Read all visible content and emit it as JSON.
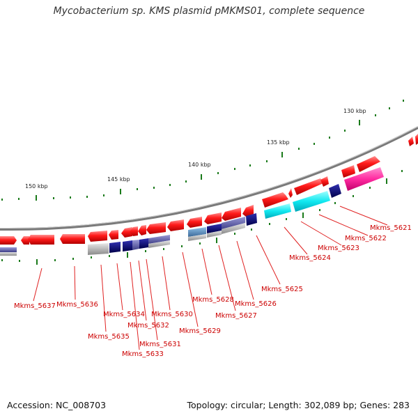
{
  "title": "Mycobacterium sp. KMS plasmid pMKMS01, complete sequence",
  "footer": {
    "accession": "Accession: NC_008703",
    "info": "Topology: circular; Length: 302,089 bp; Genes: 283"
  },
  "scale_labels": [
    "130 kbp",
    "135 kbp",
    "140 kbp",
    "145 kbp",
    "150 kbp"
  ],
  "gene_labels": [
    "Mkms_5621",
    "Mkms_5622",
    "Mkms_5623",
    "Mkms_5624",
    "Mkms_5625",
    "Mkms_5626",
    "Mkms_5627",
    "Mkms_5628",
    "Mkms_5629",
    "Mkms_5630",
    "Mkms_5631",
    "Mkms_5632",
    "Mkms_5633",
    "Mkms_5634",
    "Mkms_5635",
    "Mkms_5636",
    "Mkms_5637"
  ],
  "colors": {
    "forward_gene": "#ff1a1a",
    "cog_navy": "#0b0b7a",
    "cog_cyan": "#1ee6f0",
    "cog_magenta": "#ff3aa8",
    "cog_gray": "#b0b0b0",
    "cog_slate": "#5a5aa0",
    "cog_steel": "#4a7fb0",
    "backbone": "#777777",
    "tick": "#1a7a1a",
    "label": "#cc0000"
  }
}
